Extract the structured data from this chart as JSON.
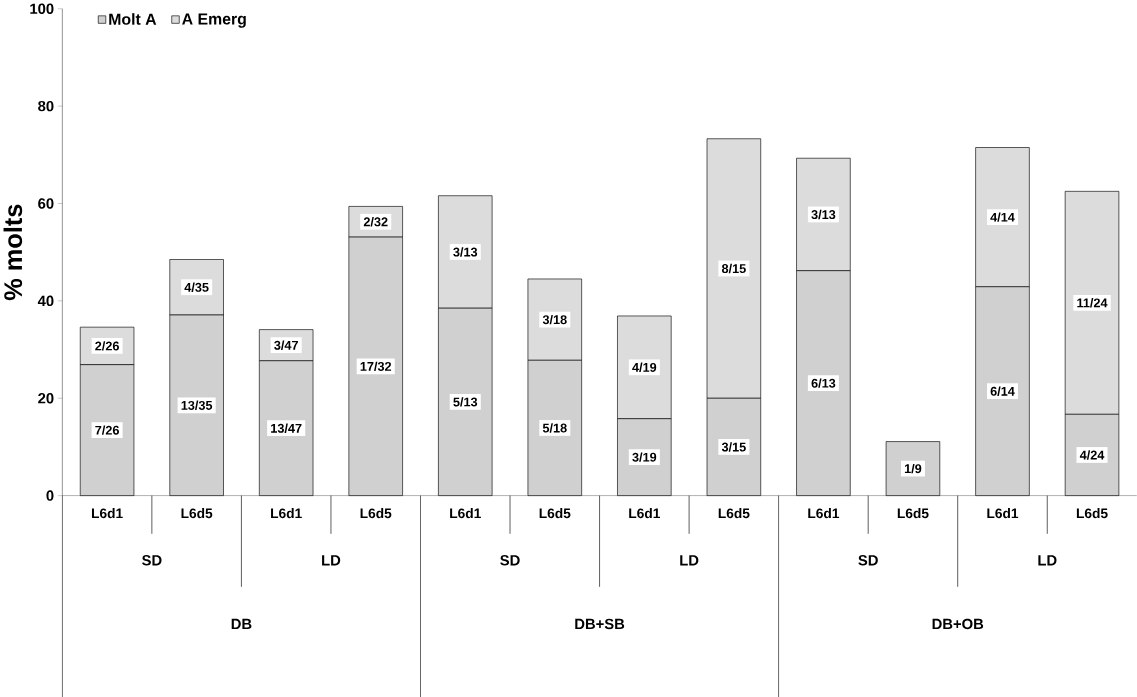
{
  "chart_data": {
    "type": "bar",
    "stacked": true,
    "ylabel": "% molts",
    "categories": [
      "L6d1",
      "L6d5",
      "L6d1",
      "L6d5",
      "L6d1",
      "L6d5",
      "L6d1",
      "L6d5",
      "L6d1",
      "L6d5",
      "L6d1",
      "L6d5"
    ],
    "series": [
      {
        "name": "Molt A",
        "color": "#d0d0d0",
        "values": [
          26.9,
          37.1,
          27.7,
          53.1,
          38.5,
          27.8,
          15.8,
          20.0,
          46.2,
          11.1,
          42.9,
          16.7
        ],
        "value_labels": [
          "7/26",
          "13/35",
          "13/47",
          "17/32",
          "5/13",
          "5/18",
          "3/19",
          "3/15",
          "6/13",
          "1/9",
          "6/14",
          "4/24"
        ]
      },
      {
        "name": "A Emerg",
        "color": "#dcdcdc",
        "values": [
          7.7,
          11.4,
          6.4,
          6.3,
          23.1,
          16.7,
          21.1,
          53.3,
          23.1,
          0,
          28.6,
          45.8
        ],
        "value_labels": [
          "2/26",
          "4/35",
          "3/47",
          "2/32",
          "3/13",
          "3/18",
          "4/19",
          "8/15",
          "3/13",
          null,
          "4/14",
          "11/24"
        ]
      }
    ],
    "ylim": [
      0,
      100
    ],
    "yticks": [
      0,
      20,
      40,
      60,
      80,
      100
    ],
    "legend": "top left",
    "grid": false,
    "annotations": [
      "SD",
      "LD",
      "SD",
      "LD",
      "SD",
      "LD",
      "DB",
      "DB+SB",
      "DB+OB"
    ]
  }
}
